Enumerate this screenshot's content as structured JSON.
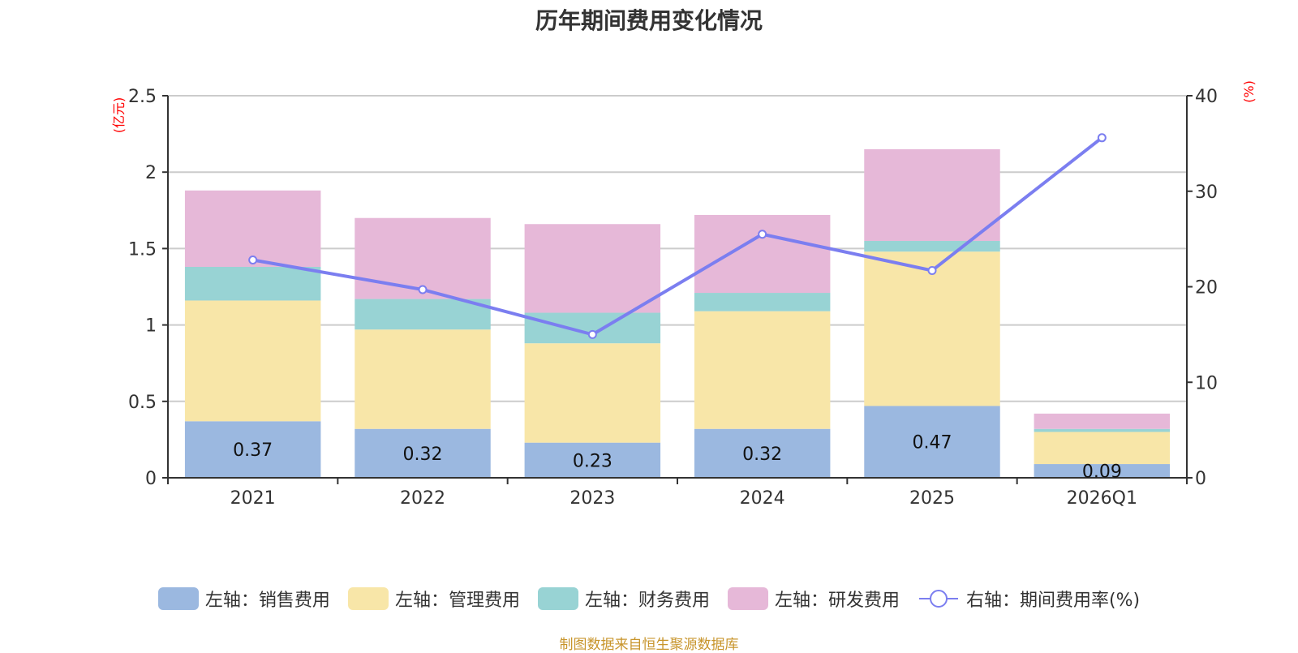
{
  "chart_data": {
    "type": "bar",
    "stacked": true,
    "title": "历年期间费用变化情况",
    "categories": [
      "2021",
      "2022",
      "2023",
      "2024",
      "2025",
      "2026Q1"
    ],
    "series": [
      {
        "name": "左轴：销售费用",
        "axis": "left",
        "type": "bar",
        "color": "#9bb8e0",
        "values": [
          0.37,
          0.32,
          0.23,
          0.32,
          0.47,
          0.09
        ],
        "show_labels": true
      },
      {
        "name": "左轴：管理费用",
        "axis": "left",
        "type": "bar",
        "color": "#f8e6a8",
        "values": [
          0.79,
          0.65,
          0.65,
          0.77,
          1.01,
          0.21
        ]
      },
      {
        "name": "左轴：财务费用",
        "axis": "left",
        "type": "bar",
        "color": "#98d3d4",
        "values": [
          0.22,
          0.2,
          0.2,
          0.12,
          0.07,
          0.02
        ]
      },
      {
        "name": "左轴：研发费用",
        "axis": "left",
        "type": "bar",
        "color": "#e6b8d8",
        "values": [
          0.5,
          0.53,
          0.58,
          0.51,
          0.6,
          0.1
        ]
      },
      {
        "name": "右轴：期间费用率(%)",
        "axis": "right",
        "type": "line",
        "color": "#7b7ef0",
        "values": [
          22.8,
          19.7,
          15.0,
          25.5,
          21.7,
          35.6
        ]
      }
    ],
    "data_labels": [
      "0.37",
      "0.32",
      "0.23",
      "0.32",
      "0.47",
      "0.09"
    ],
    "left_axis": {
      "label": "(亿元)",
      "ylim": [
        0,
        2.5
      ],
      "ticks": [
        "0",
        "0.5",
        "1",
        "1.5",
        "2",
        "2.5"
      ],
      "tick_values": [
        0,
        0.5,
        1,
        1.5,
        2,
        2.5
      ]
    },
    "right_axis": {
      "label": "(%)",
      "ylim": [
        0,
        40
      ],
      "ticks": [
        "0",
        "10",
        "20",
        "30",
        "40"
      ],
      "tick_values": [
        0,
        10,
        20,
        30,
        40
      ]
    },
    "xlabel": "",
    "grid": true,
    "legend_position": "bottom"
  },
  "footer": {
    "source": "制图数据来自恒生聚源数据库"
  },
  "colors": {
    "axis_unit": "#ff0000",
    "grid": "#cccccc",
    "axis": "#333333",
    "source_text": "#c8952c"
  }
}
